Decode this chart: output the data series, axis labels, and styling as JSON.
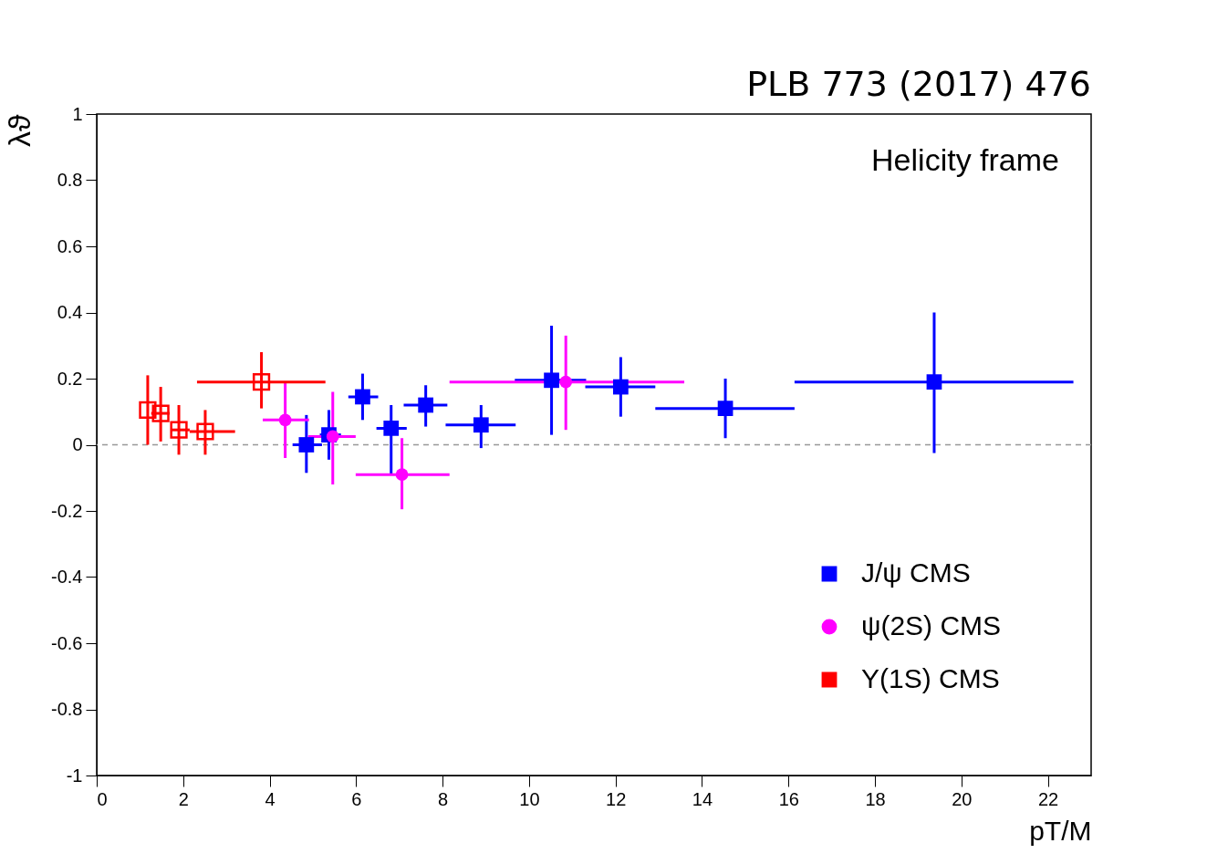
{
  "chart_data": {
    "type": "scatter",
    "xlabel": "pT/M",
    "ylabel": "λϑ",
    "xlim": [
      0,
      23
    ],
    "xticks": [
      0,
      2,
      4,
      6,
      8,
      10,
      12,
      14,
      16,
      18,
      20,
      22
    ],
    "ylim": [
      -1,
      1
    ],
    "yticks": [
      -1,
      -0.8,
      -0.6,
      -0.4,
      -0.2,
      0,
      0.2,
      0.4,
      0.6,
      0.8,
      1
    ],
    "grid": false,
    "legend": "bottom right",
    "annotations": [
      "PLB 773 (2017) 476",
      "Helicity frame"
    ],
    "ref_lines": [
      {
        "axis": "y",
        "value": 0,
        "label": null,
        "color": "#999999",
        "line_style": "dashed"
      }
    ],
    "series": [
      {
        "name": "J/ψ  CMS",
        "color": "#0000ff",
        "marker": "square",
        "x": [
          4.85,
          5.37,
          6.15,
          6.81,
          7.61,
          8.89,
          10.52,
          12.12,
          14.54,
          19.37
        ],
        "values": [
          0.0,
          0.03,
          0.145,
          0.05,
          0.12,
          0.06,
          0.195,
          0.175,
          0.11,
          0.19
        ],
        "errors": [
          [
            -0.085,
            0.09
          ],
          [
            -0.045,
            0.105
          ],
          [
            0.075,
            0.215
          ],
          [
            -0.09,
            0.12
          ],
          [
            0.055,
            0.18
          ],
          [
            -0.01,
            0.12
          ],
          [
            0.03,
            0.36
          ],
          [
            0.085,
            0.265
          ],
          [
            0.02,
            0.2
          ],
          [
            -0.025,
            0.4
          ]
        ],
        "xerrors": [
          [
            4.53,
            5.21
          ],
          [
            5.16,
            5.65
          ],
          [
            5.82,
            6.51
          ],
          [
            6.47,
            7.17
          ],
          [
            7.1,
            8.11
          ],
          [
            8.07,
            9.69
          ],
          [
            9.67,
            11.32
          ],
          [
            11.3,
            12.92
          ],
          [
            12.92,
            16.14
          ],
          [
            16.14,
            22.59
          ]
        ]
      },
      {
        "name": "ψ(2S)  CMS",
        "color": "#ff00ff",
        "marker": "circle",
        "x": [
          4.36,
          5.46,
          7.06,
          10.85
        ],
        "values": [
          0.075,
          0.025,
          -0.09,
          0.19
        ],
        "errors": [
          [
            -0.04,
            0.19
          ],
          [
            -0.12,
            0.16
          ],
          [
            -0.195,
            0.02
          ],
          [
            0.045,
            0.33
          ]
        ],
        "xerrors": [
          [
            3.84,
            4.91
          ],
          [
            4.89,
            5.99
          ],
          [
            5.99,
            8.16
          ],
          [
            8.16,
            13.59
          ]
        ]
      },
      {
        "name": "Υ(1S)  CMS",
        "color": "#ff0000",
        "marker": "square_open",
        "x": [
          1.18,
          1.48,
          1.9,
          2.51,
          3.81
        ],
        "values": [
          0.105,
          0.095,
          0.045,
          0.04,
          0.19
        ],
        "errors": [
          [
            0.0,
            0.21
          ],
          [
            0.01,
            0.175
          ],
          [
            -0.03,
            0.12
          ],
          [
            -0.03,
            0.105
          ],
          [
            0.11,
            0.28
          ]
        ],
        "xerrors": [
          null,
          [
            1.26,
            1.69
          ],
          [
            1.71,
            2.15
          ],
          [
            2.15,
            3.2
          ],
          [
            2.32,
            5.29
          ]
        ]
      }
    ]
  }
}
